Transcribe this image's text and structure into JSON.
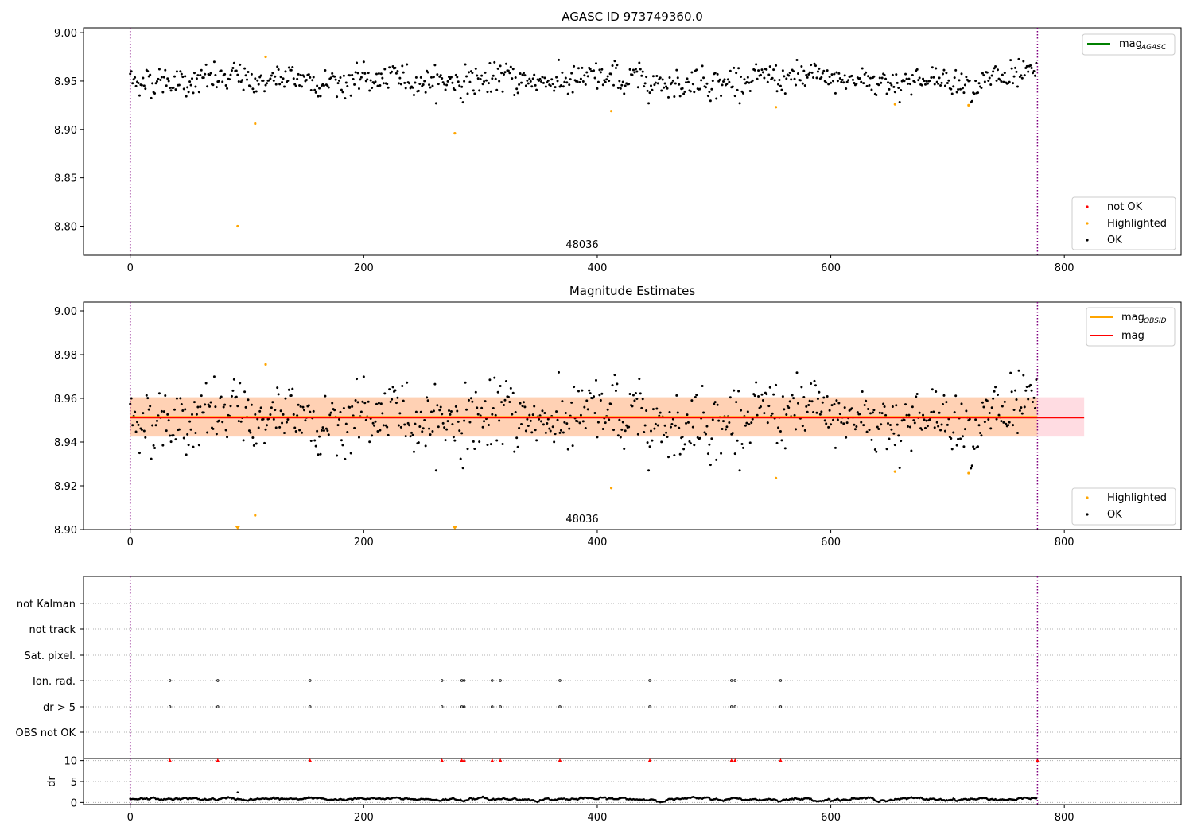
{
  "chart_data": [
    {
      "type": "scatter",
      "title": "AGASC ID 973749360.0",
      "xlim": [
        -40,
        900
      ],
      "ylim": [
        8.77,
        9.005
      ],
      "x_ticks": [
        0,
        200,
        400,
        600,
        800
      ],
      "y_ticks": [
        8.8,
        8.85,
        8.9,
        8.95,
        9.0
      ],
      "y_tick_labels": [
        "8.80",
        "8.85",
        "8.90",
        "8.95",
        "9.00"
      ],
      "obsid_label": "48036",
      "obsid_boundaries": [
        0,
        777
      ],
      "legend_top": {
        "position": "top-right",
        "entries": [
          {
            "label": "mag",
            "sub": "AGASC",
            "color": "#008000"
          }
        ]
      },
      "legend_bottom": {
        "position": "bottom-right",
        "entries": [
          {
            "label": "not OK",
            "color": "#ff0000"
          },
          {
            "label": "Highlighted",
            "color": "#ffa500"
          },
          {
            "label": "OK",
            "color": "#000000"
          }
        ]
      },
      "series": [
        {
          "name": "OK",
          "color": "#000000",
          "n": 777,
          "mean": 8.951,
          "spread": 0.009
        },
        {
          "name": "Highlighted",
          "color": "#ffa500",
          "x": [
            92,
            107,
            116,
            278,
            412,
            553,
            655,
            718
          ],
          "y": [
            8.8,
            8.906,
            8.975,
            8.896,
            8.919,
            8.923,
            8.926,
            8.925
          ]
        }
      ]
    },
    {
      "type": "scatter",
      "title": "Magnitude Estimates",
      "xlim": [
        -40,
        900
      ],
      "ylim": [
        8.9,
        9.004
      ],
      "x_ticks": [
        0,
        200,
        400,
        600,
        800
      ],
      "y_ticks": [
        8.9,
        8.92,
        8.94,
        8.96,
        8.98,
        9.0
      ],
      "y_tick_labels": [
        "8.90",
        "8.92",
        "8.94",
        "8.96",
        "8.98",
        "9.00"
      ],
      "obsid_label": "48036",
      "obsid_boundaries": [
        0,
        777
      ],
      "mag": 8.9512,
      "mag_band": [
        8.9425,
        8.9605
      ],
      "mag_obsid": 8.9515,
      "mag_x_range": [
        0,
        817
      ],
      "legend_top": {
        "position": "top-right",
        "entries": [
          {
            "label": "mag",
            "sub": "OBSID",
            "color": "#ffa500"
          },
          {
            "label": "mag",
            "sub": "",
            "color": "#ff0000"
          }
        ]
      },
      "legend_bottom": {
        "position": "bottom-right",
        "entries": [
          {
            "label": "Highlighted",
            "color": "#ffa500"
          },
          {
            "label": "OK",
            "color": "#000000"
          }
        ]
      },
      "series": [
        {
          "name": "OK",
          "color": "#000000"
        },
        {
          "name": "Highlighted",
          "color": "#ffa500",
          "x": [
            107,
            116,
            412,
            553,
            655,
            718
          ],
          "y": [
            8.9065,
            8.9755,
            8.919,
            8.9235,
            8.9265,
            8.9258
          ]
        },
        {
          "name": "Highlighted (below range)",
          "color": "#ffa500",
          "x": [
            92,
            278
          ],
          "y": [
            8.9,
            8.9
          ]
        }
      ]
    },
    {
      "type": "scatter",
      "title": "",
      "xlim": [
        -40,
        900
      ],
      "x_ticks": [
        0,
        200,
        400,
        600,
        800
      ],
      "flag_rows": [
        "not Kalman",
        "not track",
        "Sat. pixel.",
        "Ion. rad.",
        "dr > 5",
        "OBS not OK"
      ],
      "flag_times": [
        34,
        75,
        154,
        267,
        284,
        286,
        310,
        317,
        368,
        445,
        515,
        518,
        557
      ],
      "flagged_rows": [
        "Ion. rad.",
        "dr > 5"
      ],
      "obsid_boundaries": [
        0,
        777
      ]
    },
    {
      "type": "scatter",
      "title": "",
      "ylabel": "dr",
      "xlim": [
        -40,
        900
      ],
      "ylim": [
        -0.5,
        10.5
      ],
      "y_ticks": [
        0,
        5,
        10
      ],
      "x_ticks": [
        0,
        200,
        400,
        600,
        800
      ],
      "dr_clipped_value": 10,
      "dr_clipped_times": [
        34,
        75,
        154,
        267,
        284,
        286,
        310,
        317,
        368,
        445,
        515,
        518,
        557,
        777
      ],
      "dr_outlier": {
        "x": 92,
        "y": 2.4
      },
      "series": [
        {
          "name": "dr",
          "color": "#000000",
          "mean": 0.8,
          "spread": 0.3
        }
      ]
    }
  ]
}
